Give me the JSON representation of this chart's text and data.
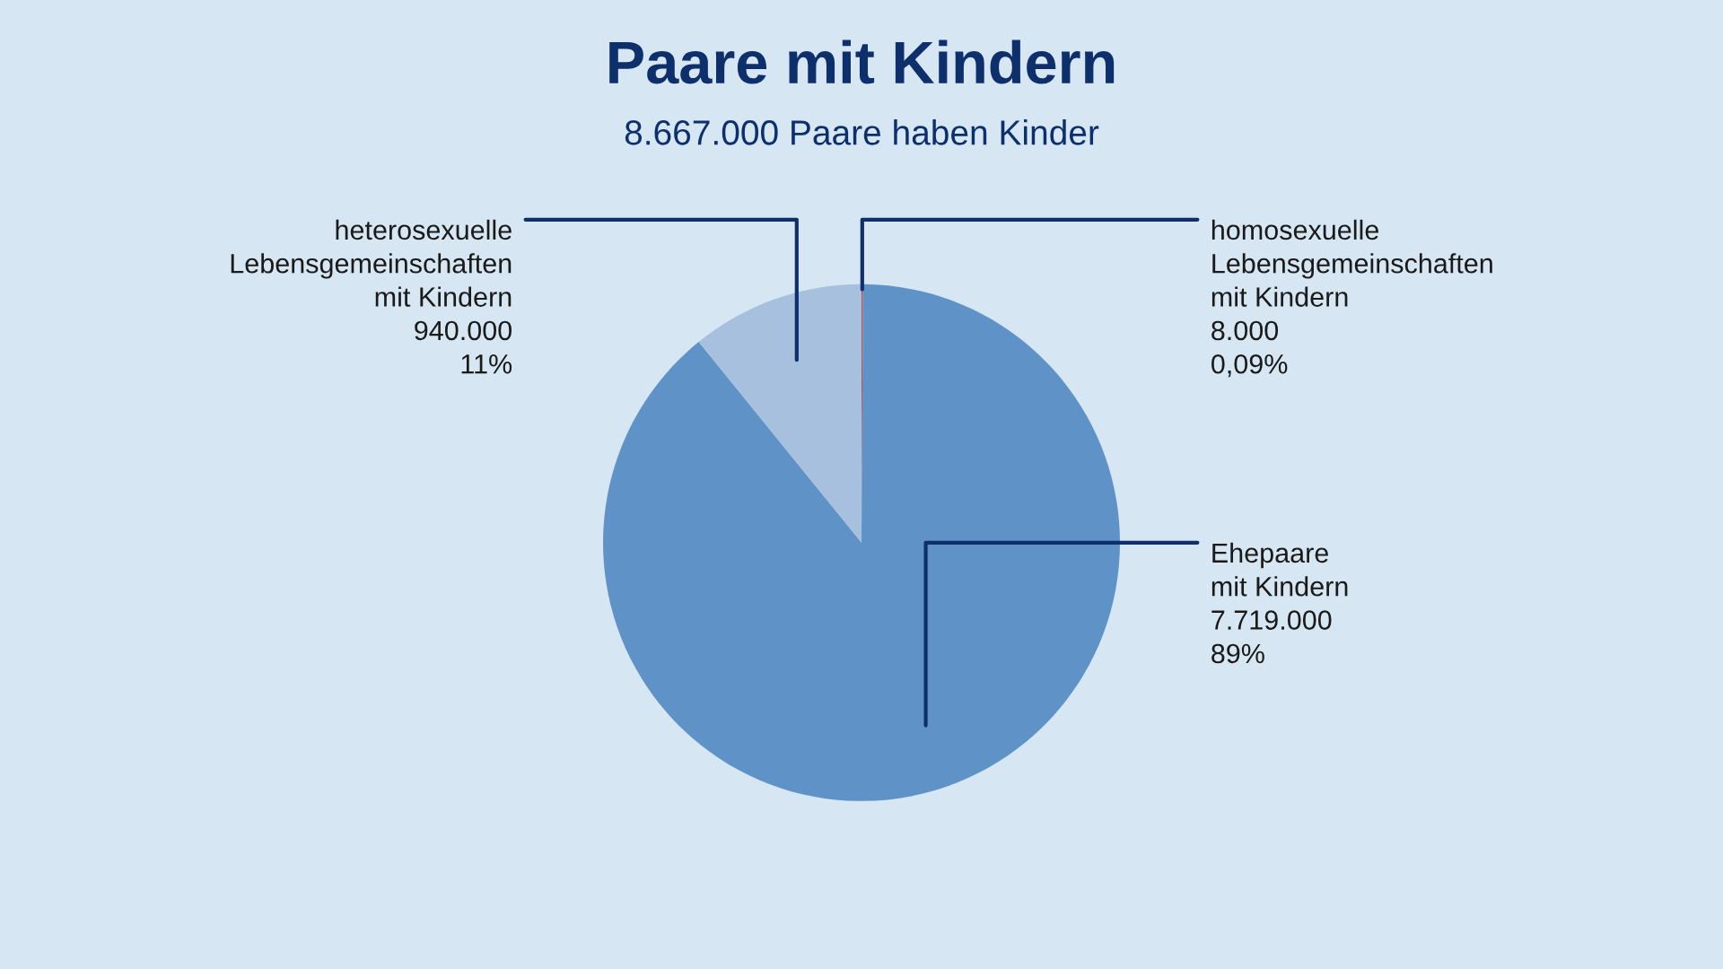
{
  "chart_data": {
    "type": "pie",
    "title": "Paare mit Kindern",
    "subtitle": "8.667.000 Paare haben Kinder",
    "categories": [
      "homosexuelle\nLebensgemeinschaften\nmit Kindern",
      "Ehepaare\nmit Kindern",
      "heterosexuelle\nLebensgemeinschaften\nmit Kindern"
    ],
    "values": [
      8000,
      7719000,
      940000
    ],
    "colors": [
      "#c0504d",
      "#5f93c7",
      "#a6c0de"
    ],
    "value_labels": [
      "8.000\n0,09%",
      "7.719.000\n89%",
      "940.000\n11%"
    ],
    "legend": false
  }
}
